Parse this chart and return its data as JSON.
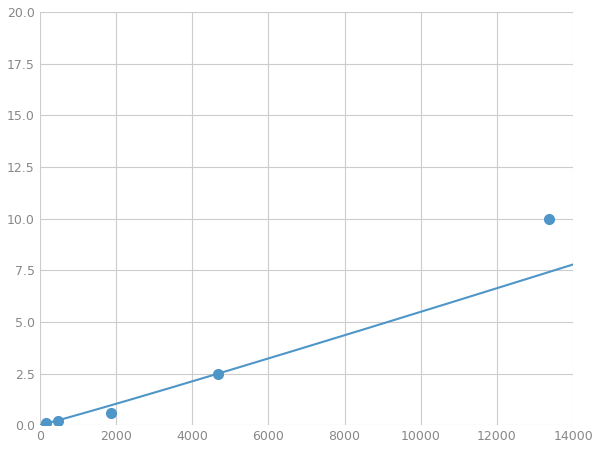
{
  "x": [
    156,
    469,
    1875,
    4688,
    13359
  ],
  "y": [
    0.1,
    0.2,
    0.6,
    2.5,
    10.0
  ],
  "line_color": "#4e96c8",
  "marker_color": "#4e96c8",
  "marker_size": 7,
  "xlim": [
    0,
    14000
  ],
  "ylim": [
    0,
    20.0
  ],
  "xticks": [
    0,
    2000,
    4000,
    6000,
    8000,
    10000,
    12000,
    14000
  ],
  "yticks": [
    0.0,
    2.5,
    5.0,
    7.5,
    10.0,
    12.5,
    15.0,
    17.5,
    20.0
  ],
  "grid": true,
  "background_color": "#ffffff",
  "line_width": 1.5
}
